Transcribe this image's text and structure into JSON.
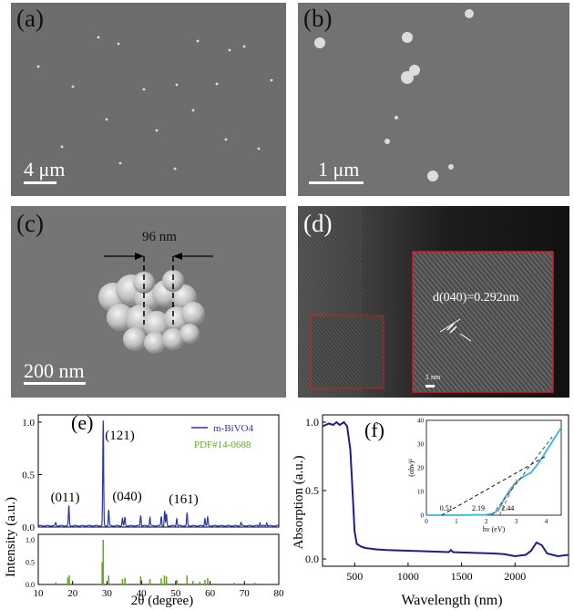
{
  "panels": {
    "a": {
      "label": "(a)",
      "scale": "4 μm"
    },
    "b": {
      "label": "(b)",
      "scale": "1 μm"
    },
    "c": {
      "label": "(c)",
      "scale": "200 nm",
      "measure": "96 nm"
    },
    "d": {
      "label": "(d)",
      "lattice": "d(040)=0.292nm",
      "inset_scale": "1 nm"
    },
    "e": {
      "label": "(e)"
    },
    "f": {
      "label": "(f)"
    }
  },
  "chart_data": [
    {
      "type": "line",
      "panel": "(e)",
      "xlabel": "2θ (degree)",
      "ylabel": "Intensity (a.u.)",
      "xlim": [
        10,
        80
      ],
      "ylim": [
        0,
        1.0
      ],
      "xticks": [
        "10",
        "20",
        "30",
        "40",
        "50",
        "60",
        "70",
        "80"
      ],
      "yticks": [
        "0.0",
        "0.5",
        "1.0"
      ],
      "legend": [
        "m-BiVO4",
        "PDF#14-0688"
      ],
      "legend_colors": [
        "#2d35a8",
        "#6aa82a"
      ],
      "legend_position": "top-right",
      "peak_labels": [
        {
          "text": "(011)",
          "x": 18.9
        },
        {
          "text": "(121)",
          "x": 28.9
        },
        {
          "text": "(040)",
          "x": 30.5
        },
        {
          "text": "(161)",
          "x": 53.3
        }
      ],
      "series": [
        {
          "name": "m-BiVO4",
          "peaks": [
            [
              15.1,
              0.03
            ],
            [
              18.9,
              0.19
            ],
            [
              28.9,
              1.0
            ],
            [
              30.5,
              0.15
            ],
            [
              34.5,
              0.07
            ],
            [
              35.2,
              0.08
            ],
            [
              39.8,
              0.1
            ],
            [
              42.5,
              0.08
            ],
            [
              45.8,
              0.09
            ],
            [
              46.8,
              0.14
            ],
            [
              47.3,
              0.11
            ],
            [
              50.3,
              0.07
            ],
            [
              53.3,
              0.12
            ],
            [
              58.5,
              0.07
            ],
            [
              59.3,
              0.08
            ],
            [
              69.0,
              0.03
            ],
            [
              74.5,
              0.03
            ],
            [
              76.5,
              0.03
            ]
          ]
        }
      ],
      "reference": {
        "yticks": [
          "0.0",
          "0.5",
          "1.0"
        ],
        "lines": [
          [
            15.1,
            0.05
          ],
          [
            18.6,
            0.15
          ],
          [
            19.0,
            0.2
          ],
          [
            28.6,
            0.5
          ],
          [
            28.9,
            1.0
          ],
          [
            30.5,
            0.2
          ],
          [
            34.5,
            0.12
          ],
          [
            35.2,
            0.15
          ],
          [
            39.8,
            0.18
          ],
          [
            40.0,
            0.1
          ],
          [
            42.5,
            0.12
          ],
          [
            45.8,
            0.14
          ],
          [
            46.7,
            0.2
          ],
          [
            47.3,
            0.18
          ],
          [
            50.3,
            0.1
          ],
          [
            53.3,
            0.2
          ],
          [
            55.0,
            0.08
          ],
          [
            57.0,
            0.06
          ],
          [
            58.5,
            0.1
          ],
          [
            59.3,
            0.14
          ],
          [
            67.0,
            0.04
          ],
          [
            73.0,
            0.04
          ]
        ]
      }
    },
    {
      "type": "line",
      "panel": "(f)",
      "xlabel": "Wavelength (nm)",
      "ylabel": "Absorption (a.u.)",
      "xlim": [
        200,
        2500
      ],
      "ylim": [
        0,
        1.0
      ],
      "xticks": [
        "500",
        "1000",
        "1500",
        "2000"
      ],
      "yticks": [
        "0.0",
        "0.5",
        "1.0"
      ],
      "series": [
        {
          "name": "",
          "x": [
            200,
            260,
            300,
            330,
            360,
            400,
            430,
            460,
            480,
            500,
            520,
            560,
            600,
            700,
            800,
            1000,
            1200,
            1380,
            1400,
            1420,
            1600,
            1800,
            1900,
            2000,
            2100,
            2150,
            2200,
            2250,
            2300,
            2400,
            2500
          ],
          "y": [
            0.97,
            0.99,
            0.98,
            1.0,
            0.98,
            1.0,
            0.97,
            0.8,
            0.5,
            0.2,
            0.11,
            0.09,
            0.08,
            0.07,
            0.065,
            0.06,
            0.055,
            0.05,
            0.065,
            0.05,
            0.045,
            0.04,
            0.035,
            0.02,
            0.03,
            0.06,
            0.12,
            0.1,
            0.04,
            0.02,
            0.03
          ]
        }
      ],
      "inset": {
        "xlabel": "hν (eV)",
        "ylabel": "(αhν)²",
        "xlim": [
          0,
          4.5
        ],
        "ylim": [
          0,
          40
        ],
        "xticks": [
          "0",
          "1",
          "2",
          "3",
          "4"
        ],
        "yticks": [
          "0",
          "10",
          "20",
          "30",
          "40"
        ],
        "annotations": [
          "0.51",
          "2.19",
          "2.44"
        ],
        "curve": {
          "x": [
            0,
            1,
            2,
            2.2,
            2.4,
            2.6,
            2.8,
            3.0,
            3.2,
            3.5,
            3.8,
            4.1,
            4.5
          ],
          "y": [
            0,
            0,
            0.2,
            0.6,
            2,
            7,
            11,
            14,
            16,
            18,
            23,
            29,
            37
          ]
        },
        "fit_lines": [
          {
            "color": "#111111",
            "x": [
              0.51,
              4.0
            ],
            "y": [
              0,
              25
            ]
          },
          {
            "color": "#e04040",
            "x": [
              2.44,
              3.0
            ],
            "y": [
              0,
              15
            ]
          },
          {
            "color": "#444444",
            "x": [
              2.19,
              4.2
            ],
            "y": [
              0,
              33
            ]
          }
        ]
      }
    }
  ]
}
